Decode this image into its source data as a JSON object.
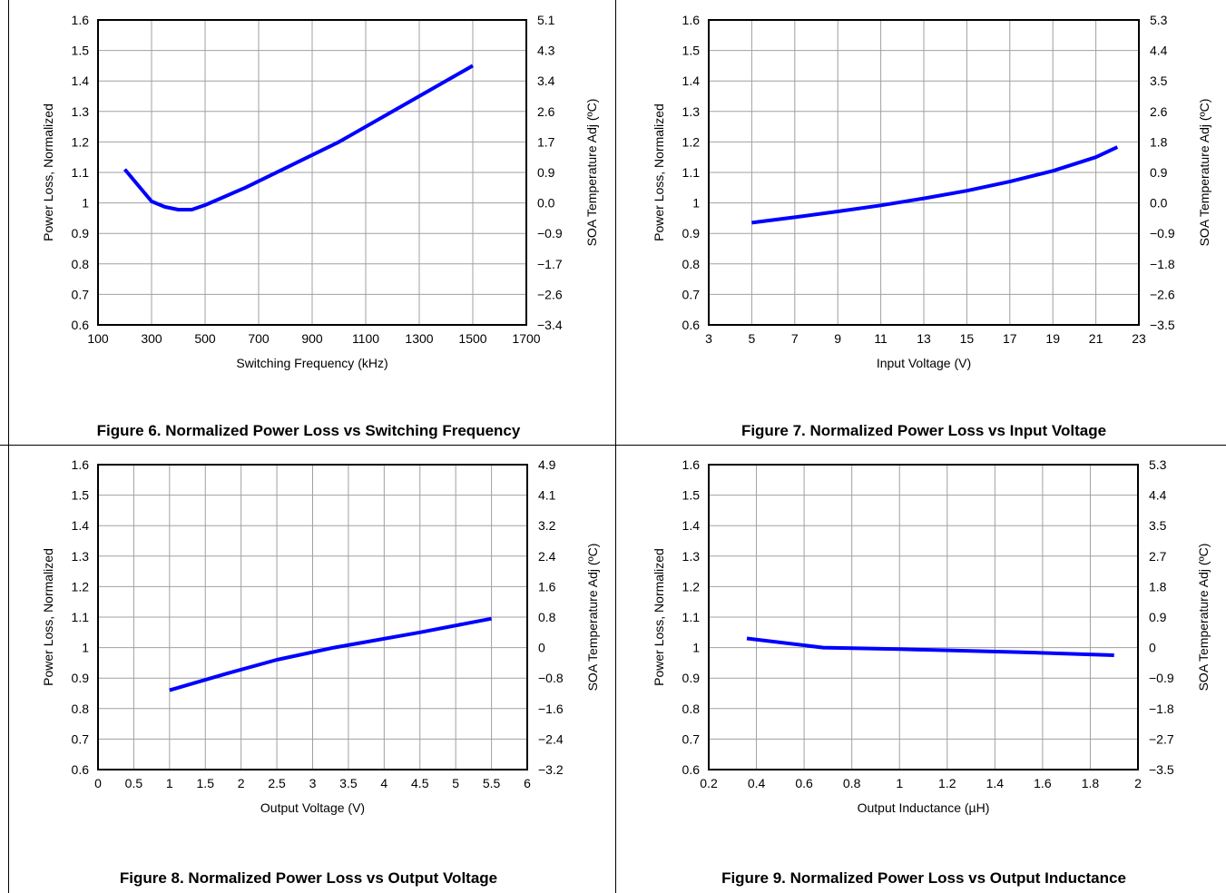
{
  "line_color": "#0000ff",
  "grid_color": "#a0a0a0",
  "chart_data": [
    {
      "type": "line",
      "caption": "Figure 6. Normalized Power Loss vs Switching Frequency",
      "xlabel": "Switching Frequency (kHz)",
      "ylabel": "Power Loss, Normalized",
      "y2label": "SOA Temperature Adj (ºC)",
      "xlim": [
        100,
        1700
      ],
      "xticks": [
        100,
        300,
        500,
        700,
        900,
        1100,
        1300,
        1500,
        1700
      ],
      "xtick_labels": [
        "100",
        "300",
        "500",
        "700",
        "900",
        "1100",
        "1300",
        "1500",
        "1700"
      ],
      "ylim": [
        0.6,
        1.6
      ],
      "yticks": [
        0.6,
        0.7,
        0.8,
        0.9,
        1.0,
        1.1,
        1.2,
        1.3,
        1.4,
        1.5,
        1.6
      ],
      "ytick_labels": [
        "0.6",
        "0.7",
        "0.8",
        "0.9",
        "1",
        "1.1",
        "1.2",
        "1.3",
        "1.4",
        "1.5",
        "1.6"
      ],
      "y2tick_labels": [
        "−3.4",
        "−2.6",
        "−1.7",
        "−0.9",
        "0.0",
        "0.9",
        "1.7",
        "2.6",
        "3.4",
        "4.3",
        "5.1"
      ],
      "grid": true,
      "x": [
        200,
        300,
        350,
        400,
        450,
        500,
        650,
        1000,
        1500
      ],
      "y": [
        1.11,
        1.005,
        0.987,
        0.978,
        0.978,
        0.993,
        1.05,
        1.2,
        1.45
      ]
    },
    {
      "type": "line",
      "caption": "Figure 7. Normalized Power Loss vs Input Voltage",
      "xlabel": "Input Voltage (V)",
      "ylabel": "Power Loss, Normalized",
      "y2label": "SOA Temperature Adj (ºC)",
      "xlim": [
        3,
        23
      ],
      "xticks": [
        3,
        5,
        7,
        9,
        11,
        13,
        15,
        17,
        19,
        21,
        23
      ],
      "xtick_labels": [
        "3",
        "5",
        "7",
        "9",
        "11",
        "13",
        "15",
        "17",
        "19",
        "21",
        "23"
      ],
      "ylim": [
        0.6,
        1.6
      ],
      "yticks": [
        0.6,
        0.7,
        0.8,
        0.9,
        1.0,
        1.1,
        1.2,
        1.3,
        1.4,
        1.5,
        1.6
      ],
      "ytick_labels": [
        "0.6",
        "0.7",
        "0.8",
        "0.9",
        "1",
        "1.1",
        "1.2",
        "1.3",
        "1.4",
        "1.5",
        "1.6"
      ],
      "y2tick_labels": [
        "−3.5",
        "−2.6",
        "−1.8",
        "−0.9",
        "0.0",
        "0.9",
        "1.8",
        "2.6",
        "3.5",
        "4.4",
        "5.3"
      ],
      "grid": true,
      "x": [
        5,
        7,
        9,
        11,
        13,
        15,
        17,
        19,
        21,
        22
      ],
      "y": [
        0.935,
        0.953,
        0.972,
        0.992,
        1.015,
        1.04,
        1.07,
        1.105,
        1.15,
        1.183
      ]
    },
    {
      "type": "line",
      "caption": "Figure 8. Normalized Power Loss vs Output Voltage",
      "xlabel": "Output Voltage (V)",
      "ylabel": "Power Loss, Normalized",
      "y2label": "SOA Temperature Adj (ºC)",
      "xlim": [
        0,
        6
      ],
      "xticks": [
        0,
        0.5,
        1,
        1.5,
        2,
        2.5,
        3,
        3.5,
        4,
        4.5,
        5,
        5.5,
        6
      ],
      "xtick_labels": [
        "0",
        "0.5",
        "1",
        "1.5",
        "2",
        "2.5",
        "3",
        "3.5",
        "4",
        "4.5",
        "5",
        "5.5",
        "6"
      ],
      "ylim": [
        0.6,
        1.6
      ],
      "yticks": [
        0.6,
        0.7,
        0.8,
        0.9,
        1.0,
        1.1,
        1.2,
        1.3,
        1.4,
        1.5,
        1.6
      ],
      "ytick_labels": [
        "0.6",
        "0.7",
        "0.8",
        "0.9",
        "1",
        "1.1",
        "1.2",
        "1.3",
        "1.4",
        "1.5",
        "1.6"
      ],
      "y2tick_labels": [
        "−3.2",
        "−2.4",
        "−1.6",
        "−0.8",
        "0",
        "0.8",
        "1.6",
        "2.4",
        "3.2",
        "4.1",
        "4.9"
      ],
      "grid": true,
      "x": [
        1.0,
        1.8,
        2.5,
        3.3,
        4.5,
        5.5
      ],
      "y": [
        0.86,
        0.915,
        0.96,
        1.0,
        1.05,
        1.095
      ]
    },
    {
      "type": "line",
      "caption": "Figure 9. Normalized Power Loss vs Output Inductance",
      "xlabel": "Output Inductance (µH)",
      "ylabel": "Power Loss, Normalized",
      "y2label": "SOA Temperature Adj (ºC)",
      "xlim": [
        0.2,
        2.0
      ],
      "xticks": [
        0.2,
        0.4,
        0.6,
        0.8,
        1.0,
        1.2,
        1.4,
        1.6,
        1.8,
        2.0
      ],
      "xtick_labels": [
        "0.2",
        "0.4",
        "0.6",
        "0.8",
        "1",
        "1.2",
        "1.4",
        "1.6",
        "1.8",
        "2"
      ],
      "ylim": [
        0.6,
        1.6
      ],
      "yticks": [
        0.6,
        0.7,
        0.8,
        0.9,
        1.0,
        1.1,
        1.2,
        1.3,
        1.4,
        1.5,
        1.6
      ],
      "ytick_labels": [
        "0.6",
        "0.7",
        "0.8",
        "0.9",
        "1",
        "1.1",
        "1.2",
        "1.3",
        "1.4",
        "1.5",
        "1.6"
      ],
      "y2tick_labels": [
        "−3.5",
        "−2.7",
        "−1.8",
        "−0.9",
        "0",
        "0.9",
        "1.8",
        "2.7",
        "3.5",
        "4.4",
        "5.3"
      ],
      "grid": true,
      "x": [
        0.36,
        0.68,
        1.0,
        1.5,
        1.9
      ],
      "y": [
        1.03,
        1.0,
        0.995,
        0.985,
        0.975
      ]
    }
  ]
}
